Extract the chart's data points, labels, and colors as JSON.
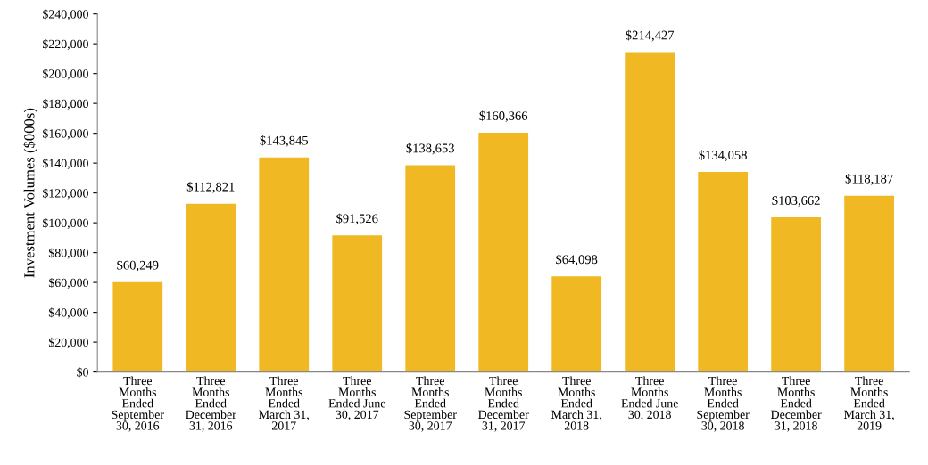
{
  "chart_data": {
    "type": "bar",
    "ylabel": "Investment Volumes ($000s)",
    "categories": [
      "Three\nMonths\nEnded\nSeptember\n30, 2016",
      "Three\nMonths\nEnded\nDecember\n31, 2016",
      "Three\nMonths\nEnded\nMarch 31,\n2017",
      "Three\nMonths\nEnded June\n30, 2017",
      "Three\nMonths\nEnded\nSeptember\n30, 2017",
      "Three\nMonths\nEnded\nDecember\n31, 2017",
      "Three\nMonths\nEnded\nMarch 31,\n2018",
      "Three\nMonths\nEnded June\n30, 2018",
      "Three\nMonths\nEnded\nSeptember\n30, 2018",
      "Three\nMonths\nEnded\nDecember\n31, 2018",
      "Three\nMonths\nEnded\nMarch 31,\n2019"
    ],
    "values": [
      60249,
      112821,
      143845,
      91526,
      138653,
      160366,
      64098,
      214427,
      134058,
      103662,
      118187
    ],
    "value_labels": [
      "$60,249",
      "$112,821",
      "$143,845",
      "$91,526",
      "$138,653",
      "$160,366",
      "$64,098",
      "$214,427",
      "$134,058",
      "$103,662",
      "$118,187"
    ],
    "color": "#f0b823",
    "ylim": [
      0,
      240000
    ],
    "yticks": [
      {
        "value": 0,
        "label": "$0"
      },
      {
        "value": 20000,
        "label": "$20,000"
      },
      {
        "value": 40000,
        "label": "$40,000"
      },
      {
        "value": 60000,
        "label": "$60,000"
      },
      {
        "value": 80000,
        "label": "$80,000"
      },
      {
        "value": 100000,
        "label": "$100,000"
      },
      {
        "value": 120000,
        "label": "$120,000"
      },
      {
        "value": 140000,
        "label": "$140,000"
      },
      {
        "value": 160000,
        "label": "$160,000"
      },
      {
        "value": 180000,
        "label": "$180,000"
      },
      {
        "value": 200000,
        "label": "$200,000"
      },
      {
        "value": 220000,
        "label": "$220,000"
      },
      {
        "value": 240000,
        "label": "$240,000"
      }
    ],
    "grid": false
  }
}
